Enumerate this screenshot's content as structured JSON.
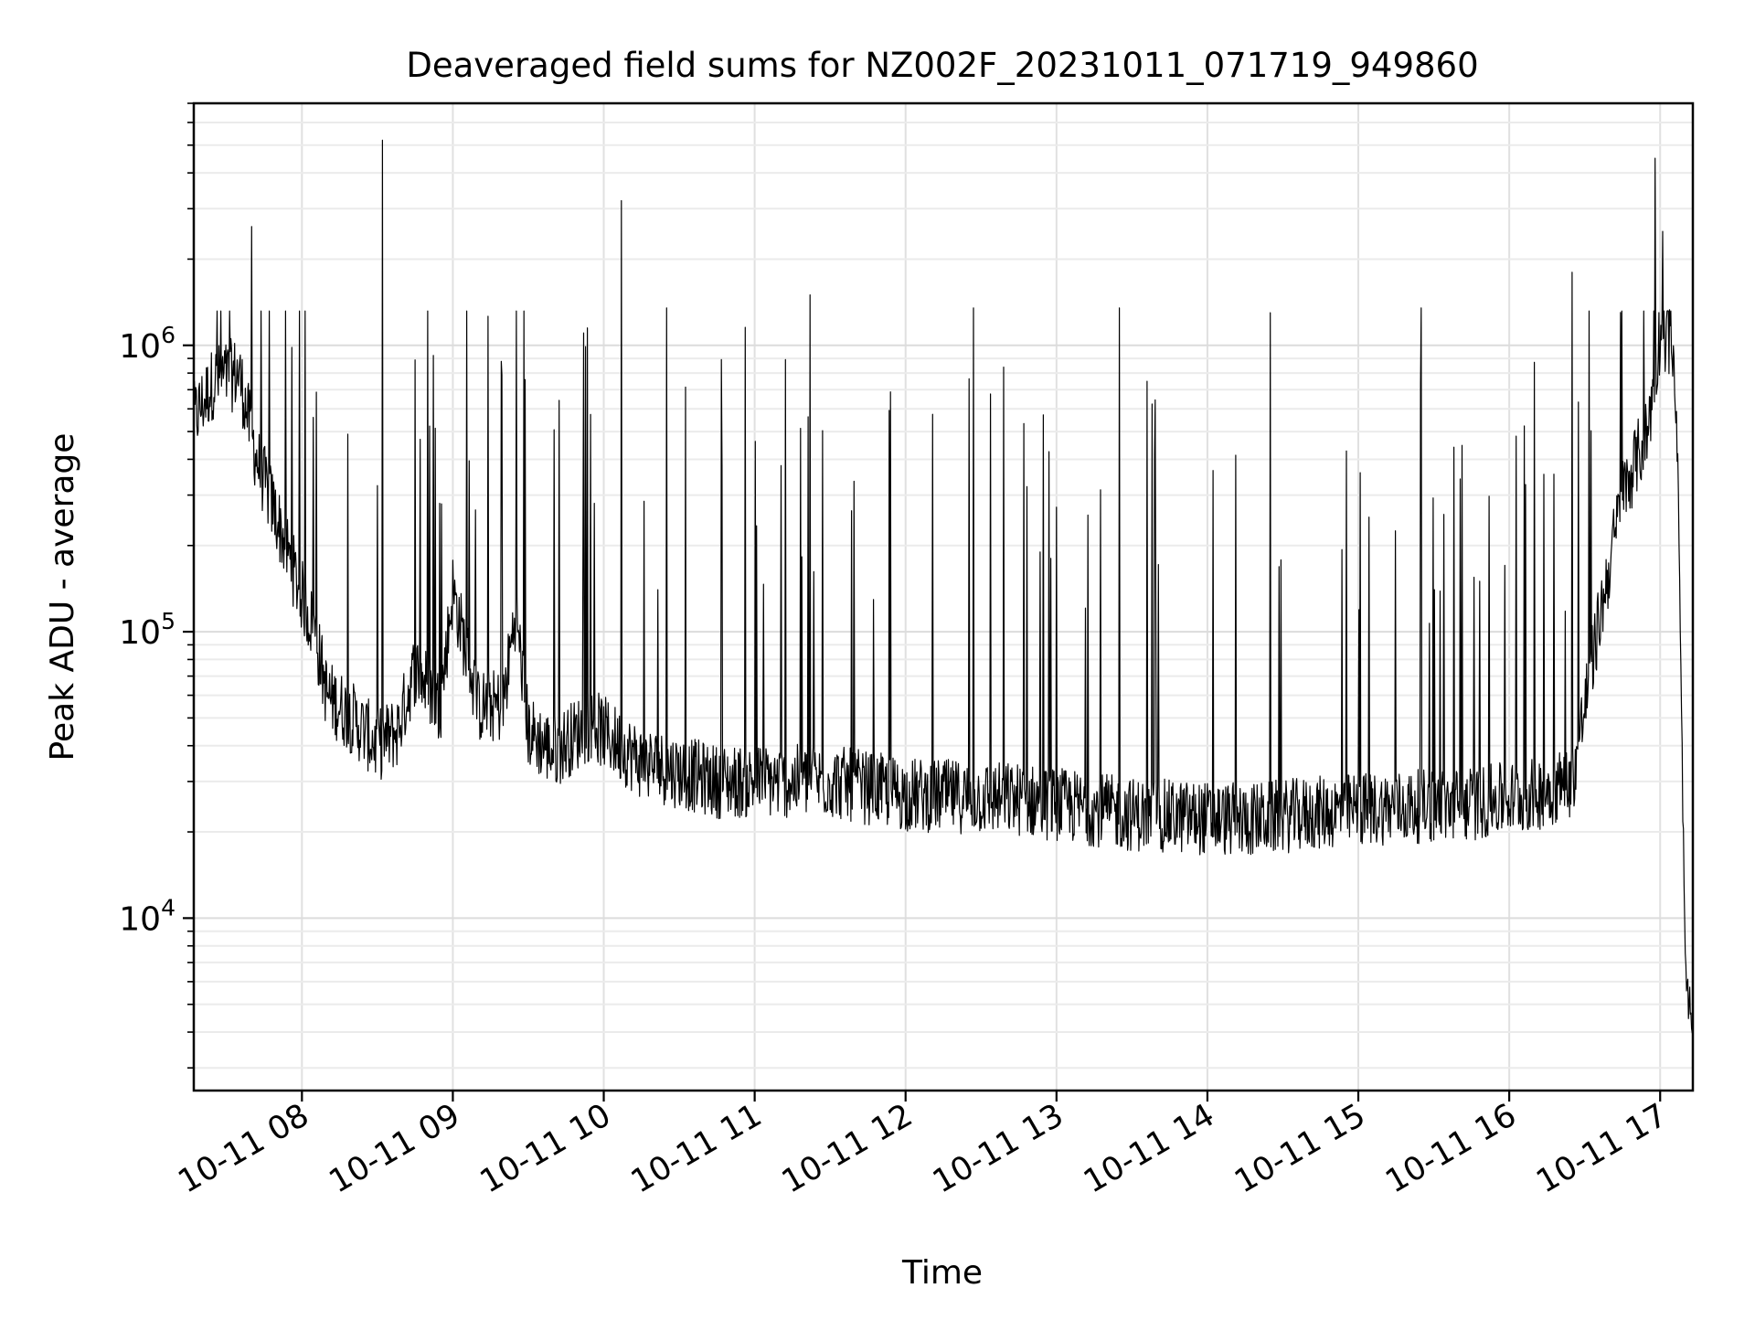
{
  "chart_data": {
    "type": "line",
    "title": "Deaveraged field sums for NZ002F_20231011_071719_949860",
    "xlabel": "Time",
    "ylabel": "Peak ADU - average",
    "yscale": "log",
    "ylim": [
      2500,
      7000000
    ],
    "xlim": [
      "2023-10-11 07:17",
      "2023-10-11 17:13"
    ],
    "grid": true,
    "grid_minor": true,
    "line_color": "#000000",
    "x_ticks": [
      {
        "x": "2023-10-11 08:00",
        "label": "10-11 08"
      },
      {
        "x": "2023-10-11 09:00",
        "label": "10-11 09"
      },
      {
        "x": "2023-10-11 10:00",
        "label": "10-11 10"
      },
      {
        "x": "2023-10-11 11:00",
        "label": "10-11 11"
      },
      {
        "x": "2023-10-11 12:00",
        "label": "10-11 12"
      },
      {
        "x": "2023-10-11 13:00",
        "label": "10-11 13"
      },
      {
        "x": "2023-10-11 14:00",
        "label": "10-11 14"
      },
      {
        "x": "2023-10-11 15:00",
        "label": "10-11 15"
      },
      {
        "x": "2023-10-11 16:00",
        "label": "10-11 16"
      },
      {
        "x": "2023-10-11 17:00",
        "label": "10-11 17"
      }
    ],
    "y_ticks": [
      {
        "value": 10000,
        "base": "10",
        "exp": "4"
      },
      {
        "value": 100000,
        "base": "10",
        "exp": "5"
      },
      {
        "value": 1000000,
        "base": "10",
        "exp": "6"
      }
    ],
    "series": [
      {
        "x": [
          "2023-10-11 07:17",
          "2023-10-11 07:25",
          "2023-10-11 07:35",
          "2023-10-11 07:42",
          "2023-10-11 07:50",
          "2023-10-11 07:58",
          "2023-10-11 08:05",
          "2023-10-11 08:10",
          "2023-10-11 08:20",
          "2023-10-11 08:30",
          "2023-10-11 08:38",
          "2023-10-11 08:45",
          "2023-10-11 08:55",
          "2023-10-11 09:00",
          "2023-10-11 09:10",
          "2023-10-11 09:20",
          "2023-10-11 09:25",
          "2023-10-11 09:30",
          "2023-10-11 09:40",
          "2023-10-11 09:55",
          "2023-10-11 10:15",
          "2023-10-11 10:45",
          "2023-10-11 11:30",
          "2023-10-11 12:00",
          "2023-10-11 12:45",
          "2023-10-11 13:30",
          "2023-10-11 14:15",
          "2023-10-11 15:00",
          "2023-10-11 15:45",
          "2023-10-11 16:10",
          "2023-10-11 16:25",
          "2023-10-11 16:35",
          "2023-10-11 16:45",
          "2023-10-11 16:55",
          "2023-10-11 17:00",
          "2023-10-11 17:05",
          "2023-10-11 17:07",
          "2023-10-11 17:10",
          "2023-10-11 17:13"
        ],
        "y": [
          550000,
          750000,
          800000,
          400000,
          250000,
          150000,
          100000,
          60000,
          50000,
          40000,
          45000,
          75000,
          55000,
          140000,
          55000,
          55000,
          120000,
          45000,
          38000,
          48000,
          35000,
          30000,
          30000,
          27000,
          26000,
          23000,
          22000,
          24000,
          25000,
          27000,
          30000,
          100000,
          300000,
          500000,
          1100000,
          1000000,
          400000,
          6500,
          4000
        ],
        "spikes": [
          {
            "x": "2023-10-11 07:40",
            "y": 2600000
          },
          {
            "x": "2023-10-11 08:32",
            "y": 5200000
          },
          {
            "x": "2023-10-11 10:07",
            "y": 3200000
          },
          {
            "x": "2023-10-11 10:25",
            "y": 1350000
          },
          {
            "x": "2023-10-11 11:22",
            "y": 1500000
          },
          {
            "x": "2023-10-11 12:27",
            "y": 1350000
          },
          {
            "x": "2023-10-11 13:25",
            "y": 1350000
          },
          {
            "x": "2023-10-11 14:25",
            "y": 1300000
          },
          {
            "x": "2023-10-11 15:25",
            "y": 1350000
          },
          {
            "x": "2023-10-11 16:25",
            "y": 1800000
          },
          {
            "x": "2023-10-11 16:58",
            "y": 4500000
          },
          {
            "x": "2023-10-11 17:01",
            "y": 2500000
          }
        ]
      }
    ]
  }
}
